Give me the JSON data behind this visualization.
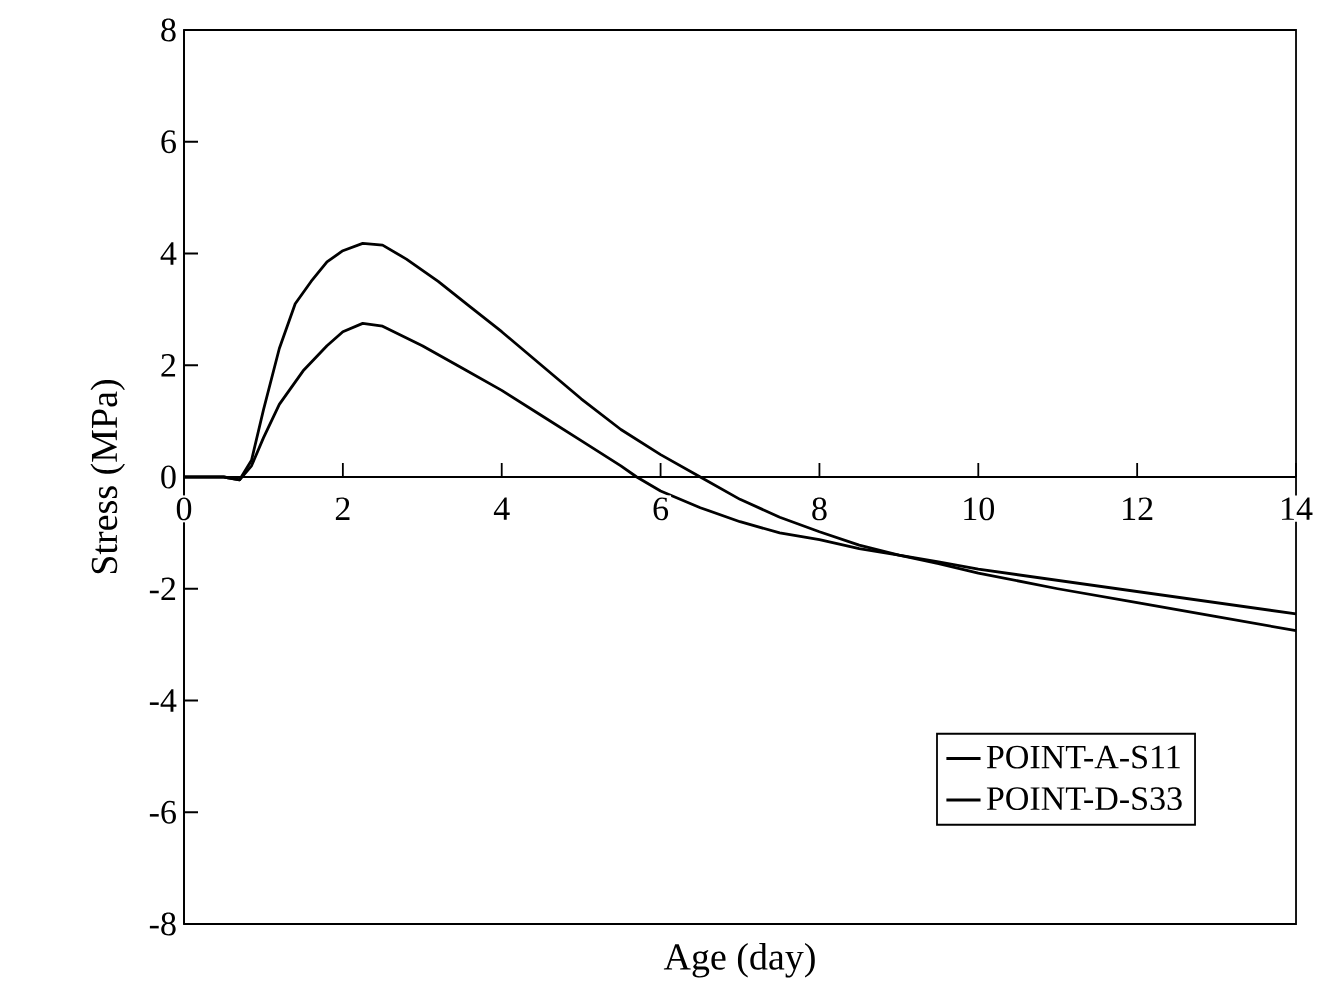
{
  "chart_data": {
    "type": "line",
    "xlabel": "Age (day)",
    "ylabel": "Stress (MPa)",
    "xlim": [
      0,
      14
    ],
    "ylim": [
      -8,
      8
    ],
    "xticks": [
      0,
      2,
      4,
      6,
      8,
      10,
      12,
      14
    ],
    "yticks": [
      -8,
      -6,
      -4,
      -2,
      0,
      2,
      4,
      6,
      8
    ],
    "grid": false,
    "legend": "bottom right",
    "marker": "none",
    "line_style": "solid",
    "series": [
      {
        "name": "POINT-A-S11",
        "color": "#000000",
        "x": [
          0,
          0.5,
          0.7,
          0.85,
          1.0,
          1.2,
          1.4,
          1.6,
          1.8,
          2.0,
          2.25,
          2.5,
          2.8,
          3.2,
          3.6,
          4.0,
          4.5,
          5.0,
          5.5,
          6.0,
          6.5,
          7.0,
          7.5,
          8.0,
          8.5,
          9.0,
          9.5,
          10,
          11,
          12,
          13,
          14
        ],
        "values": [
          0,
          0,
          -0.05,
          0.3,
          1.2,
          2.3,
          3.1,
          3.5,
          3.85,
          4.05,
          4.18,
          4.15,
          3.9,
          3.5,
          3.05,
          2.6,
          2.0,
          1.4,
          0.85,
          0.4,
          0.0,
          -0.4,
          -0.72,
          -0.98,
          -1.22,
          -1.4,
          -1.55,
          -1.72,
          -2.0,
          -2.25,
          -2.5,
          -2.75
        ]
      },
      {
        "name": "POINT-D-S33",
        "color": "#000000",
        "x": [
          0,
          0.5,
          0.7,
          0.85,
          1.0,
          1.2,
          1.5,
          1.8,
          2.0,
          2.25,
          2.5,
          3.0,
          3.5,
          4.0,
          4.5,
          5.0,
          5.5,
          5.7,
          6.0,
          6.5,
          7.0,
          7.5,
          8.0,
          8.5,
          9.0,
          9.5,
          10,
          11,
          12,
          13,
          14
        ],
        "values": [
          0,
          0,
          -0.05,
          0.2,
          0.7,
          1.3,
          1.9,
          2.35,
          2.6,
          2.75,
          2.7,
          2.35,
          1.95,
          1.55,
          1.1,
          0.65,
          0.2,
          0.0,
          -0.25,
          -0.55,
          -0.8,
          -1.0,
          -1.12,
          -1.28,
          -1.4,
          -1.52,
          -1.65,
          -1.85,
          -2.05,
          -2.25,
          -2.45
        ]
      }
    ]
  }
}
